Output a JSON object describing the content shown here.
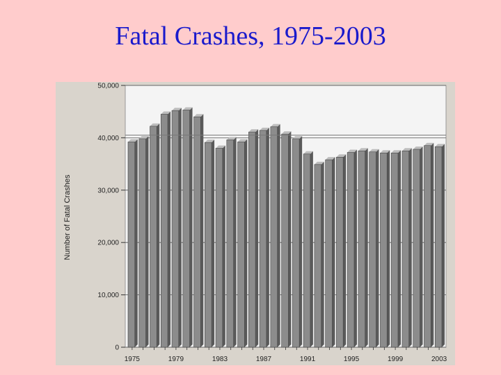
{
  "slide": {
    "title": "Fatal Crashes, 1975-2003"
  },
  "chart_data": {
    "type": "bar",
    "title": "Fatal Crashes, 1975-2003",
    "xlabel": "",
    "ylabel": "Number of Fatal Crashes",
    "ylim": [
      0,
      50000
    ],
    "yticks": [
      0,
      10000,
      20000,
      30000,
      40000,
      50000
    ],
    "ytick_labels": [
      "0",
      "10,000",
      "20,000",
      "30,000",
      "40,000",
      "50,000"
    ],
    "categories": [
      1975,
      1976,
      1977,
      1978,
      1979,
      1980,
      1981,
      1982,
      1983,
      1984,
      1985,
      1986,
      1987,
      1988,
      1989,
      1990,
      1991,
      1992,
      1993,
      1994,
      1995,
      1996,
      1997,
      1998,
      1999,
      2000,
      2001,
      2002,
      2003
    ],
    "xtick_labels": [
      "1975",
      "1979",
      "1983",
      "1987",
      "1991",
      "1995",
      "1999",
      "2003"
    ],
    "xtick_years": [
      1975,
      1979,
      1983,
      1987,
      1991,
      1995,
      1999,
      2003
    ],
    "values": [
      39200,
      39800,
      42200,
      44500,
      45200,
      45300,
      44000,
      39100,
      38000,
      39600,
      39200,
      41100,
      41400,
      42100,
      40700,
      39800,
      36900,
      34900,
      35800,
      36300,
      37200,
      37500,
      37300,
      37100,
      37100,
      37500,
      37800,
      38500,
      38300
    ],
    "reference_line": 40500,
    "grid": true,
    "colors": {
      "bar": "#8c8c8c",
      "bar_dark": "#5a5a5a",
      "bar_light": "#bdbdbd",
      "plot_bg": "#f4f4f4",
      "gridline": "#555555"
    }
  }
}
